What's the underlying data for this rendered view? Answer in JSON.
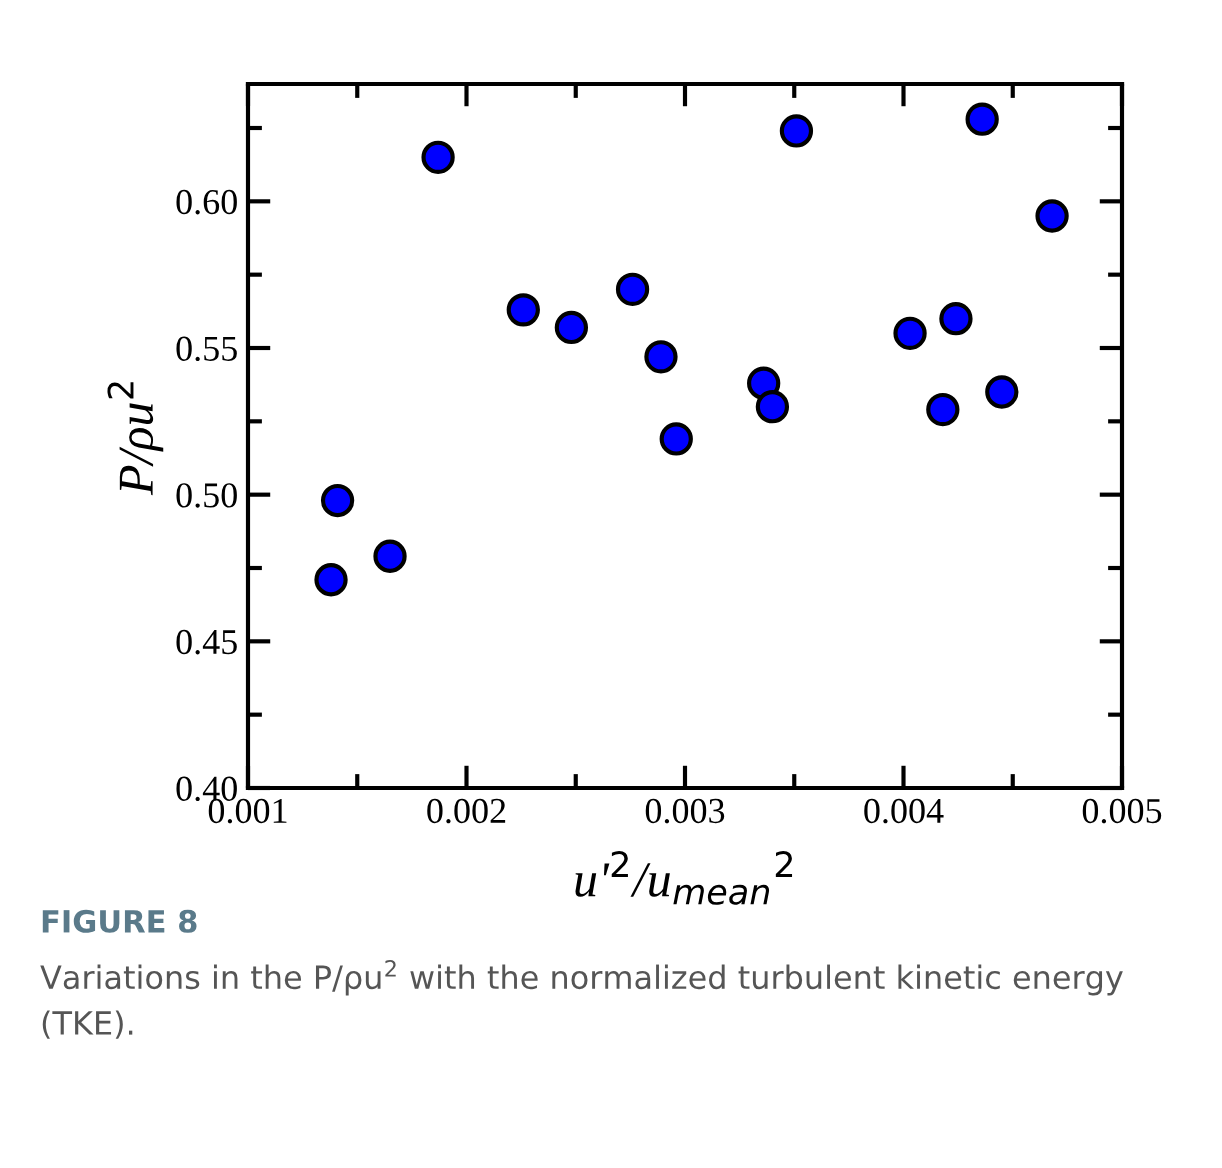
{
  "chart_data": {
    "type": "scatter",
    "xlabel": "u'$^{2}$/u$_{mean}$$^{2}$",
    "ylabel": "P/ρu$^{2}$",
    "x": [
      0.00138,
      0.00141,
      0.00165,
      0.00187,
      0.00226,
      0.00248,
      0.00276,
      0.00289,
      0.00296,
      0.00336,
      0.0034,
      0.00351,
      0.00403,
      0.00418,
      0.00424,
      0.00436,
      0.00445,
      0.00468
    ],
    "series": [
      {
        "color": "#0000ff",
        "values": [
          0.471,
          0.498,
          0.479,
          0.615,
          0.563,
          0.557,
          0.57,
          0.547,
          0.519,
          0.538,
          0.53,
          0.624,
          0.555,
          0.529,
          0.56,
          0.628,
          0.535,
          0.595
        ]
      }
    ],
    "xlim": [
      0.001,
      0.005
    ],
    "xticks": [
      0.001,
      0.002,
      0.003,
      0.004,
      0.005
    ],
    "ylim": [
      0.4,
      0.64
    ],
    "yticks": [
      {
        "value": 0.4,
        "label": "0.40"
      },
      {
        "value": 0.45,
        "label": "0.45"
      },
      {
        "value": 0.5,
        "label": "0.50"
      },
      {
        "value": 0.55,
        "label": "0.55"
      },
      {
        "value": 0.6,
        "label": "0.60"
      }
    ],
    "marker": "circle",
    "grid": false,
    "legend": false,
    "annotations": [
      "FIGURE 8",
      "Variations in the P/ρu$^{2}$ with the normalized turbulent kinetic energy (TKE)."
    ]
  }
}
